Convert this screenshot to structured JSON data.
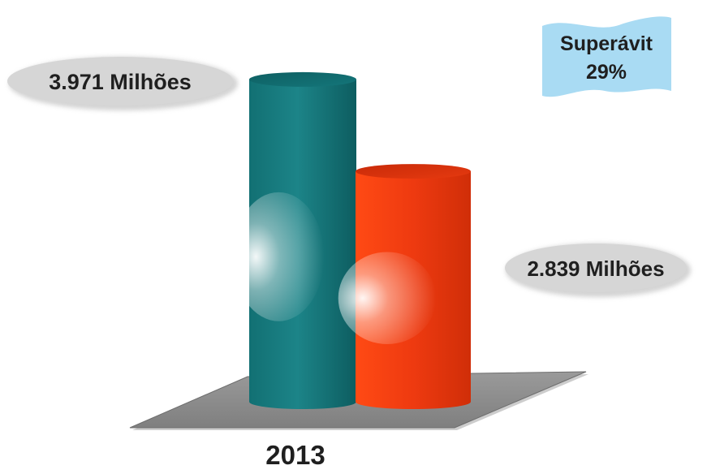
{
  "chart_data": {
    "type": "bar",
    "categories": [
      "2013"
    ],
    "series": [
      {
        "values": [
          3971
        ],
        "color": "#1a7d80"
      },
      {
        "values": [
          2839
        ],
        "color": "#ee3a10"
      }
    ],
    "data_labels": [
      "3.971 Milhões",
      "2.839 Milhões"
    ],
    "annotation": {
      "line1": "Superávit",
      "line2": "29%",
      "color": "#a9dbf3"
    },
    "ylim": [
      0,
      4200
    ],
    "grid": false,
    "legend": "none",
    "floor_color": "#8e8e8e",
    "label_bubble_color": "#d4d4d4"
  }
}
